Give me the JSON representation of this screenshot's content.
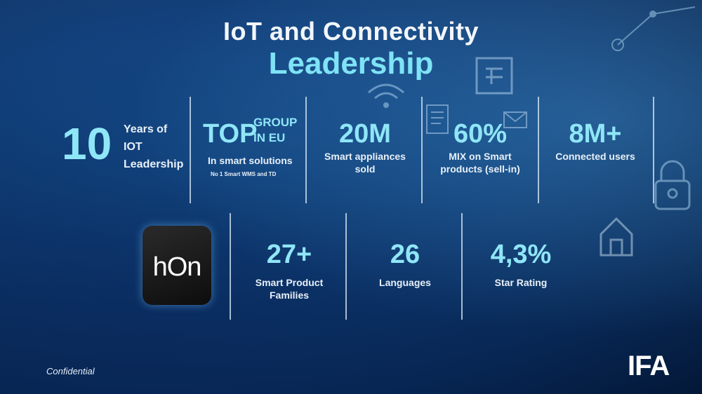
{
  "slide": {
    "title": "IoT and Connectivity",
    "subtitle": "Leadership"
  },
  "stats_row1": [
    {
      "value": "10",
      "label": "Years of\nIOT\nLeadership"
    },
    {
      "value": "TOP",
      "super": "GROUP\nIN EU",
      "label": "In smart solutions",
      "note": "No 1 Smart WMS and TD"
    },
    {
      "value": "20M",
      "label": "Smart appliances\nsold"
    },
    {
      "value": "60%",
      "label": "MIX on Smart\nproducts (sell-in)"
    },
    {
      "value": "8M+",
      "label": "Connected users"
    }
  ],
  "stats_row2": [
    {
      "value": "27+",
      "label": "Smart Product\nFamilies"
    },
    {
      "value": "26",
      "label": "Languages"
    },
    {
      "value": "4,3%",
      "label": "Star Rating"
    }
  ],
  "app_logo": {
    "text": "hOn"
  },
  "footer": {
    "confidential": "Confidential",
    "event_logo": "IFA"
  },
  "colors": {
    "background": "#0a3a78",
    "accent": "#8fe6f7",
    "text": "#e8f0f8"
  },
  "icons": [
    "wifi-icon",
    "phone-icon",
    "mail-icon",
    "home-icon",
    "lock-icon",
    "document-icon"
  ]
}
